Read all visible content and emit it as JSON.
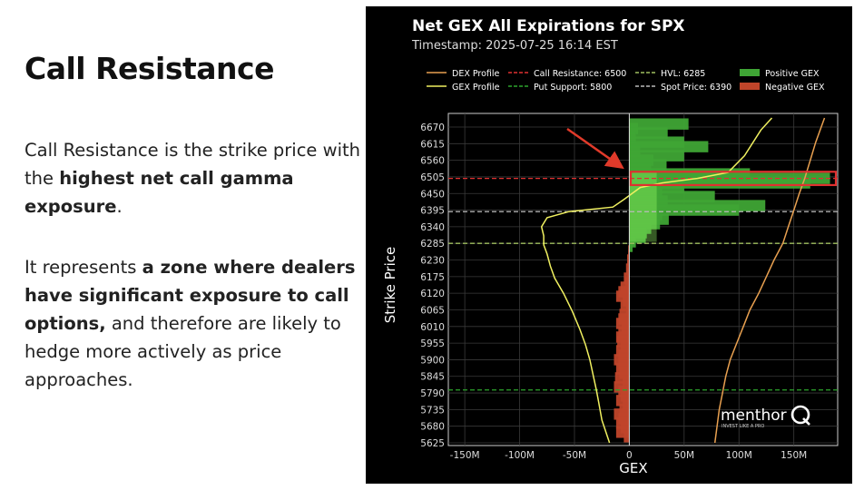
{
  "slide": {
    "title": "Call Resistance",
    "p1": [
      {
        "t": "Call Resistance is the strike price with the ",
        "b": false
      },
      {
        "t": "highest net call gamma exposure",
        "b": true
      },
      {
        "t": ".",
        "b": false
      }
    ],
    "p2": [
      {
        "t": "It represents ",
        "b": false
      },
      {
        "t": "a zone where dealers have significant exposure to call options,",
        "b": true
      },
      {
        "t": " and therefore are likely to hedge more actively as price approaches.",
        "b": false
      }
    ]
  },
  "chart_data": {
    "type": "bar",
    "orientation": "horizontal",
    "title": "Net GEX All Expirations for SPX",
    "subtitle": "Timestamp: 2025-07-25 16:14 EST",
    "xlabel": "GEX",
    "ylabel": "Strike Price",
    "xlim": [
      -165,
      190
    ],
    "ylim": [
      5625,
      6700
    ],
    "x_ticks": [
      -150,
      -100,
      -50,
      0,
      50,
      100,
      150
    ],
    "x_tick_labels": [
      "-150M",
      "-100M",
      "-50M",
      "0",
      "50M",
      "100M",
      "150M"
    ],
    "y_tick_labels": [
      "6670",
      "6615",
      "6560",
      "6505",
      "6450",
      "6395",
      "6340",
      "6285",
      "6230",
      "6175",
      "6120",
      "6065",
      "6010",
      "5955",
      "5900",
      "5845",
      "5790",
      "5735",
      "5680",
      "5625"
    ],
    "grid": true,
    "legend": {
      "placement": "top",
      "entries": [
        {
          "label": "DEX Profile",
          "color": "#e8a050",
          "style": "line"
        },
        {
          "label": "Call Resistance: 6500",
          "color": "#e03030",
          "style": "dashed"
        },
        {
          "label": "HVL: 6285",
          "color": "#a0c060",
          "style": "dashed"
        },
        {
          "label": "Positive GEX",
          "color": "#3fa535",
          "style": "patch"
        },
        {
          "label": "GEX Profile",
          "color": "#f0f060",
          "style": "line"
        },
        {
          "label": "Put Support: 5800",
          "color": "#2ea62e",
          "style": "dashed"
        },
        {
          "label": "Spot Price: 6390",
          "color": "#bbbbbb",
          "style": "dashed"
        },
        {
          "label": "Negative GEX",
          "color": "#c0452a",
          "style": "patch"
        }
      ]
    },
    "reference_lines": [
      {
        "name": "Call Resistance",
        "y": 6500,
        "color": "#e03030"
      },
      {
        "name": "HVL",
        "y": 6285,
        "color": "#a0c060"
      },
      {
        "name": "Put Support",
        "y": 5800,
        "color": "#2ea62e"
      },
      {
        "name": "Spot Price",
        "y": 6390,
        "color": "#bbbbbb"
      }
    ],
    "bars": [
      {
        "strike": 6680,
        "value": 54
      },
      {
        "strike": 6665,
        "value": 8
      },
      {
        "strike": 6650,
        "value": 35
      },
      {
        "strike": 6635,
        "value": 6
      },
      {
        "strike": 6620,
        "value": 50
      },
      {
        "strike": 6605,
        "value": 72
      },
      {
        "strike": 6590,
        "value": 10
      },
      {
        "strike": 6575,
        "value": 50
      },
      {
        "strike": 6560,
        "value": 22
      },
      {
        "strike": 6545,
        "value": 34
      },
      {
        "strike": 6530,
        "value": 20
      },
      {
        "strike": 6515,
        "value": 110
      },
      {
        "strike": 6500,
        "value": 183
      },
      {
        "strike": 6485,
        "value": 165
      },
      {
        "strike": 6470,
        "value": 50
      },
      {
        "strike": 6455,
        "value": 30
      },
      {
        "strike": 6440,
        "value": 78
      },
      {
        "strike": 6425,
        "value": 35
      },
      {
        "strike": 6410,
        "value": 124
      },
      {
        "strike": 6395,
        "value": 100
      },
      {
        "strike": 6380,
        "value": 30
      },
      {
        "strike": 6365,
        "value": 36
      },
      {
        "strike": 6350,
        "value": 28
      },
      {
        "strike": 6335,
        "value": 20
      },
      {
        "strike": 6320,
        "value": 16
      },
      {
        "strike": 6305,
        "value": 15
      },
      {
        "strike": 6290,
        "value": 6
      },
      {
        "strike": 6275,
        "value": 3
      },
      {
        "strike": 6260,
        "value": -1
      },
      {
        "strike": 6245,
        "value": -1
      },
      {
        "strike": 6230,
        "value": -2
      },
      {
        "strike": 6215,
        "value": -1
      },
      {
        "strike": 6200,
        "value": -3
      },
      {
        "strike": 6185,
        "value": -2
      },
      {
        "strike": 6170,
        "value": -5
      },
      {
        "strike": 6155,
        "value": -4
      },
      {
        "strike": 6140,
        "value": -8
      },
      {
        "strike": 6125,
        "value": -10
      },
      {
        "strike": 6110,
        "value": -12
      },
      {
        "strike": 6095,
        "value": -6
      },
      {
        "strike": 6080,
        "value": -8
      },
      {
        "strike": 6065,
        "value": -3
      },
      {
        "strike": 6050,
        "value": -9
      },
      {
        "strike": 6035,
        "value": -10
      },
      {
        "strike": 6020,
        "value": -12
      },
      {
        "strike": 6005,
        "value": -7
      },
      {
        "strike": 5990,
        "value": -10
      },
      {
        "strike": 5975,
        "value": -12
      },
      {
        "strike": 5960,
        "value": -11
      },
      {
        "strike": 5945,
        "value": -8
      },
      {
        "strike": 5930,
        "value": -12
      },
      {
        "strike": 5915,
        "value": -10
      },
      {
        "strike": 5900,
        "value": -14
      },
      {
        "strike": 5885,
        "value": -10
      },
      {
        "strike": 5870,
        "value": -12
      },
      {
        "strike": 5855,
        "value": -9
      },
      {
        "strike": 5840,
        "value": -13
      },
      {
        "strike": 5825,
        "value": -6
      },
      {
        "strike": 5810,
        "value": -14
      },
      {
        "strike": 5795,
        "value": -10
      },
      {
        "strike": 5780,
        "value": -8
      },
      {
        "strike": 5765,
        "value": -12
      },
      {
        "strike": 5750,
        "value": -6
      },
      {
        "strike": 5735,
        "value": -9
      },
      {
        "strike": 5720,
        "value": -14
      },
      {
        "strike": 5705,
        "value": -10
      },
      {
        "strike": 5690,
        "value": -12
      },
      {
        "strike": 5675,
        "value": -8
      },
      {
        "strike": 5660,
        "value": -12
      },
      {
        "strike": 5645,
        "value": -5
      }
    ],
    "gex_profile": [
      [
        130,
        6700
      ],
      [
        120,
        6660
      ],
      [
        105,
        6575
      ],
      [
        90,
        6520
      ],
      [
        62,
        6500
      ],
      [
        30,
        6485
      ],
      [
        10,
        6470
      ],
      [
        -5,
        6430
      ],
      [
        -15,
        6405
      ],
      [
        -55,
        6390
      ],
      [
        -75,
        6370
      ],
      [
        -80,
        6340
      ],
      [
        -78,
        6310
      ],
      [
        -78,
        6280
      ],
      [
        -75,
        6250
      ],
      [
        -72,
        6210
      ],
      [
        -68,
        6170
      ],
      [
        -60,
        6120
      ],
      [
        -52,
        6060
      ],
      [
        -45,
        6000
      ],
      [
        -40,
        5950
      ],
      [
        -36,
        5900
      ],
      [
        -33,
        5850
      ],
      [
        -30,
        5800
      ],
      [
        -28,
        5760
      ],
      [
        -25,
        5700
      ],
      [
        -18,
        5625
      ]
    ],
    "dex_profile": [
      [
        178,
        6700
      ],
      [
        170,
        6620
      ],
      [
        165,
        6560
      ],
      [
        160,
        6500
      ],
      [
        155,
        6450
      ],
      [
        150,
        6395
      ],
      [
        145,
        6340
      ],
      [
        140,
        6285
      ],
      [
        132,
        6230
      ],
      [
        125,
        6175
      ],
      [
        118,
        6120
      ],
      [
        110,
        6065
      ],
      [
        104,
        6010
      ],
      [
        98,
        5955
      ],
      [
        92,
        5900
      ],
      [
        88,
        5845
      ],
      [
        85,
        5790
      ],
      [
        82,
        5735
      ],
      [
        80,
        5680
      ],
      [
        78,
        5625
      ]
    ],
    "annotations": {
      "highlight_box": {
        "y_min": 6478,
        "y_max": 6522,
        "label": ""
      },
      "arrow_target": {
        "x": -8,
        "y": 6540
      }
    },
    "watermark": {
      "brand": "menthor",
      "tagline": "INVEST LIKE A PRO"
    },
    "colors": {
      "positive": "#3fa535",
      "negative": "#c0452a",
      "background": "#000000"
    }
  }
}
